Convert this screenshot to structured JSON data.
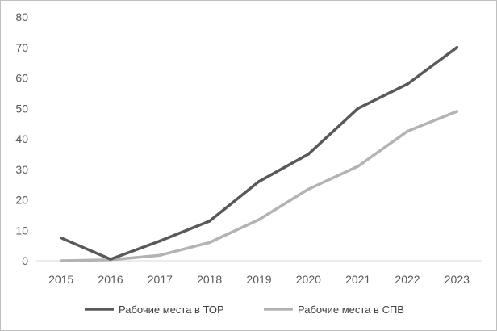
{
  "chart_data": {
    "type": "line",
    "title": "",
    "xlabel": "",
    "ylabel": "",
    "x": [
      "2015",
      "2016",
      "2017",
      "2018",
      "2019",
      "2020",
      "2021",
      "2022",
      "2023"
    ],
    "ylim": [
      0,
      80
    ],
    "yticks": [
      "0",
      "10",
      "20",
      "30",
      "40",
      "50",
      "60",
      "70",
      "80"
    ],
    "grid": false,
    "legend": "bottom",
    "series": [
      {
        "name": "Рабочие места в ТОР",
        "color": "#595959",
        "values": [
          7.5,
          0.5,
          6.5,
          13,
          26,
          35,
          50,
          58,
          70
        ]
      },
      {
        "name": "Рабочие места в СПВ",
        "color": "#b3b3b3",
        "values": [
          0,
          0.3,
          1.8,
          6,
          13.5,
          23.5,
          31,
          42.5,
          49
        ]
      }
    ]
  }
}
